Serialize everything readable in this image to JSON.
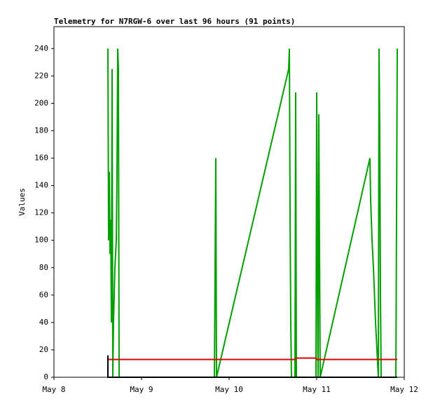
{
  "chart_data": {
    "type": "line",
    "title": "Telemetry for N7RGW-6 over last 96 hours (91 points)",
    "y_label": "Values",
    "xlim": [
      0,
      4
    ],
    "xticks": [
      {
        "value": 0,
        "label": "May 8"
      },
      {
        "value": 1,
        "label": "May 9"
      },
      {
        "value": 2,
        "label": "May 10"
      },
      {
        "value": 3,
        "label": "May 11"
      },
      {
        "value": 4,
        "label": "May 12"
      }
    ],
    "ylim": [
      0,
      256
    ],
    "yticks": [
      0,
      20,
      40,
      60,
      80,
      100,
      120,
      140,
      160,
      180,
      200,
      220,
      240
    ],
    "series": [
      {
        "color": "#00a000",
        "x": [
          0.616,
          0.624,
          0.632,
          0.64,
          0.648,
          0.656,
          0.664,
          0.672,
          0.68,
          0.696,
          0.712,
          0.72,
          0.728,
          0.736,
          0.744,
          1.832,
          1.84,
          1.848,
          1.856,
          2.68,
          2.688,
          2.696,
          2.704,
          2.712,
          2.752,
          2.76,
          2.768,
          2.992,
          3.0,
          3.008,
          3.016,
          3.024,
          3.032,
          3.04,
          3.608,
          3.616,
          3.632,
          3.648,
          3.672,
          3.688,
          3.704,
          3.712,
          3.72,
          3.728,
          3.736,
          3.904,
          3.912,
          3.92
        ],
        "values": [
          240,
          100,
          150,
          90,
          115,
          40,
          225,
          0,
          40,
          80,
          100,
          150,
          240,
          225,
          0,
          0,
          80,
          160,
          0,
          225,
          240,
          120,
          40,
          0,
          0,
          208,
          0,
          0,
          208,
          88,
          0,
          192,
          96,
          0,
          160,
          130,
          100,
          80,
          40,
          20,
          0,
          240,
          180,
          60,
          0,
          0,
          120,
          240
        ]
      },
      {
        "color": "#e00000",
        "x": [
          0.616,
          2.76,
          2.768,
          2.992,
          3.0,
          3.92
        ],
        "values": [
          13,
          13,
          14,
          14,
          13,
          13
        ]
      },
      {
        "color": "#000000",
        "x": [
          0.616,
          0.616,
          3.92
        ],
        "values": [
          16,
          0,
          0
        ]
      }
    ]
  }
}
